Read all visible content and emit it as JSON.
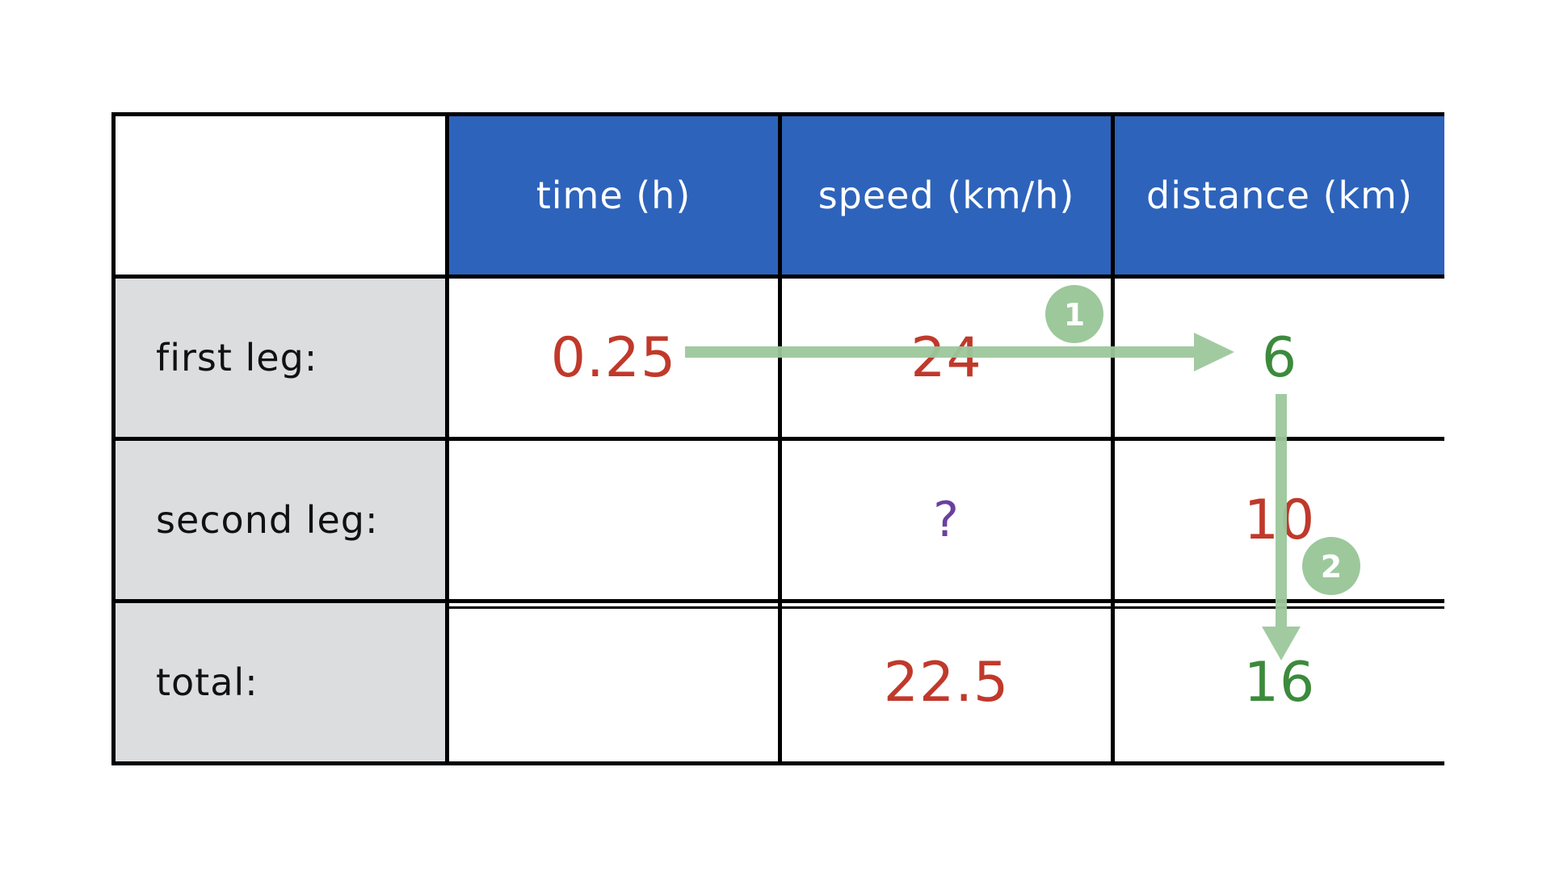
{
  "table": {
    "headers": [
      "",
      "time (h)",
      "speed (km/h)",
      "distance (km)"
    ],
    "rows": [
      {
        "label": "first leg:",
        "time": "0.25",
        "speed": "24",
        "distance": "6"
      },
      {
        "label": "second leg:",
        "time": "",
        "speed": "?",
        "distance": "10"
      },
      {
        "label": "total:",
        "time": "",
        "speed": "22.5",
        "distance": "16"
      }
    ]
  },
  "steps": [
    {
      "number": "1"
    },
    {
      "number": "2"
    }
  ],
  "colors": {
    "header_bg": "#2d63bb",
    "header_text": "#ffffff",
    "label_bg": "#dcdddf",
    "given_value": "#c0392b",
    "computed_value": "#3c8a3c",
    "unknown_value": "#6b3fa0",
    "arrow": "#9cc89c"
  }
}
